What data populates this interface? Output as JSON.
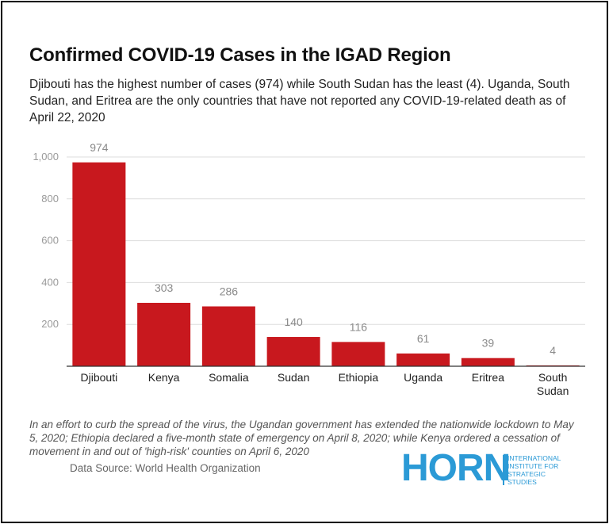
{
  "title": "Confirmed COVID-19 Cases in the IGAD Region",
  "subtitle": "Djibouti has the highest number of cases (974) while South Sudan has the least (4). Uganda, South Sudan, and Eritrea are the only countries that have not reported any COVID-19-related death as of April 22, 2020",
  "note": "In an effort to curb the spread of the virus, the Ugandan government has extended the nationwide lockdown to May 5, 2020; Ethiopia declared a five-month state of emergency on April 8, 2020; while Kenya ordered a cessation of movement in and out of 'high-risk' counties on April 6, 2020",
  "source": "Data Source: World Health Organization",
  "logo": {
    "word": "HORN",
    "subtitle": "INTERNATIONAL\nINSTITUTE FOR\nSTRATEGIC\nSTUDIES"
  },
  "colors": {
    "bar": "#c8181e",
    "grid": "#dddddd",
    "axis": "#333333",
    "logo": "#2b9ad6"
  },
  "chart_data": {
    "type": "bar",
    "categories": [
      "Djibouti",
      "Kenya",
      "Somalia",
      "Sudan",
      "Ethiopia",
      "Uganda",
      "Eritrea",
      "South Sudan"
    ],
    "category_lines": [
      [
        "Djibouti"
      ],
      [
        "Kenya"
      ],
      [
        "Somalia"
      ],
      [
        "Sudan"
      ],
      [
        "Ethiopia"
      ],
      [
        "Uganda"
      ],
      [
        "Eritrea"
      ],
      [
        "South",
        "Sudan"
      ]
    ],
    "values": [
      974,
      303,
      286,
      140,
      116,
      61,
      39,
      4
    ],
    "value_labels": [
      "974",
      "303",
      "286",
      "140",
      "116",
      "61",
      "39",
      "4"
    ],
    "ylim": [
      0,
      1000
    ],
    "yticks": [
      200,
      400,
      600,
      800,
      1000
    ],
    "ytick_labels": [
      "200",
      "400",
      "600",
      "800",
      "1,000"
    ],
    "grid": true,
    "title": "Confirmed COVID-19 Cases in the IGAD Region"
  }
}
